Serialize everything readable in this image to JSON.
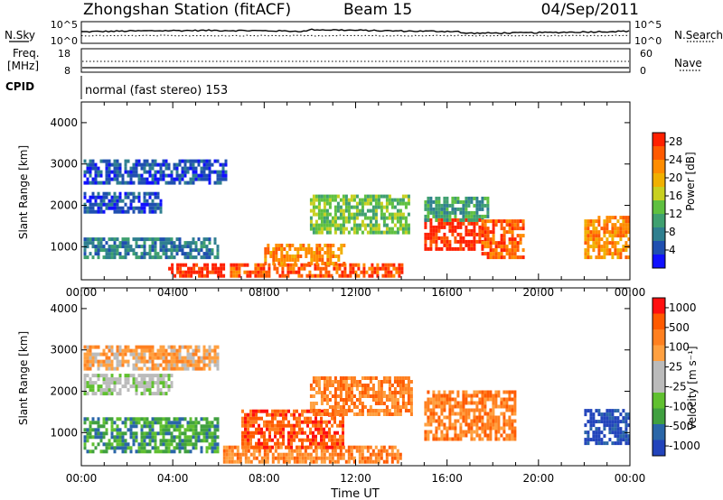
{
  "header": {
    "station": "Zhongshan Station (fitACF)",
    "beam": "Beam 15",
    "date": "04/Sep/2011"
  },
  "top_panels": {
    "nsky_label": "N.Sky",
    "nsearch_label": "N.Search",
    "noise_ticks": [
      "10^5",
      "10^0"
    ],
    "freq_label_1": "Freq.",
    "freq_label_2": "[MHz]",
    "freq_ticks": [
      "18",
      "8"
    ],
    "nave_label": "Nave",
    "nave_ticks": [
      "60",
      "0"
    ],
    "cpid_label": "CPID",
    "cpid_text": "normal (fast stereo) 153"
  },
  "colors": {
    "power": [
      "#1010ff",
      "#1f4fb0",
      "#2f7f8f",
      "#3fa070",
      "#5fc040",
      "#c8d020",
      "#f0b000",
      "#ff8c00",
      "#ff5a00",
      "#ff2000"
    ],
    "velocity": [
      "#2244bb",
      "#2a66a8",
      "#40a040",
      "#60c030",
      "#bbbbbb",
      "#bbbbbb",
      "#ffa040",
      "#ff8020",
      "#ff5a00",
      "#ff1010"
    ]
  },
  "chart_data": [
    {
      "type": "heatmap",
      "name": "power",
      "ylabel": "Slant Range [km]",
      "ylim": [
        200,
        4500
      ],
      "yticks": [
        "1000",
        "2000",
        "3000",
        "4000"
      ],
      "xticks": [
        "00:00",
        "04:00",
        "08:00",
        "12:00",
        "16:00",
        "20:00",
        "00:00"
      ],
      "colorbar_label": "Power [dB]",
      "colorbar_ticks": [
        "4",
        "8",
        "12",
        "16",
        "20",
        "24",
        "28"
      ],
      "regions": [
        {
          "t0": 0.1,
          "t1": 6.0,
          "r0": 700,
          "r1": 1200,
          "level": 2
        },
        {
          "t0": 0.1,
          "t1": 3.5,
          "r0": 1800,
          "r1": 2300,
          "level": 1
        },
        {
          "t0": 0.1,
          "t1": 6.3,
          "r0": 2500,
          "r1": 3100,
          "level": 1
        },
        {
          "t0": 3.8,
          "t1": 6.2,
          "r0": 250,
          "r1": 550,
          "level": 9
        },
        {
          "t0": 6.5,
          "t1": 14.0,
          "r0": 250,
          "r1": 550,
          "level": 8
        },
        {
          "t0": 8.0,
          "t1": 11.5,
          "r0": 550,
          "r1": 1000,
          "level": 7
        },
        {
          "t0": 10.0,
          "t1": 14.3,
          "r0": 1300,
          "r1": 2200,
          "level": 4
        },
        {
          "t0": 15.0,
          "t1": 17.6,
          "r0": 900,
          "r1": 1600,
          "level": 9
        },
        {
          "t0": 15.0,
          "t1": 17.8,
          "r0": 1600,
          "r1": 2200,
          "level": 3
        },
        {
          "t0": 17.5,
          "t1": 19.3,
          "r0": 700,
          "r1": 1600,
          "level": 8
        },
        {
          "t0": 22.0,
          "t1": 24.0,
          "r0": 700,
          "r1": 1700,
          "level": 7
        }
      ]
    },
    {
      "type": "heatmap",
      "name": "velocity",
      "ylabel": "Slant Range [km]",
      "ylim": [
        200,
        4500
      ],
      "yticks": [
        "1000",
        "2000",
        "3000",
        "4000"
      ],
      "xticks": [
        "00:00",
        "04:00",
        "08:00",
        "12:00",
        "16:00",
        "20:00",
        "00:00"
      ],
      "xlabel": "Time UT",
      "colorbar_label": "Velocity [m s⁻¹]",
      "colorbar_ticks": [
        "1000",
        "500",
        "100",
        "25",
        "-25",
        "-100",
        "-500",
        "-1000"
      ],
      "regions": [
        {
          "t0": 0.1,
          "t1": 4.0,
          "r0": 1900,
          "r1": 2400,
          "level": 4
        },
        {
          "t0": 0.1,
          "t1": 6.0,
          "r0": 2500,
          "r1": 3100,
          "level": 6
        },
        {
          "t0": 0.1,
          "t1": 6.0,
          "r0": 500,
          "r1": 1300,
          "level": 2
        },
        {
          "t0": 6.2,
          "t1": 14.0,
          "r0": 250,
          "r1": 600,
          "level": 7
        },
        {
          "t0": 7.0,
          "t1": 11.5,
          "r0": 600,
          "r1": 1500,
          "level": 8
        },
        {
          "t0": 10.0,
          "t1": 14.5,
          "r0": 1400,
          "r1": 2300,
          "level": 7
        },
        {
          "t0": 15.0,
          "t1": 19.0,
          "r0": 800,
          "r1": 2000,
          "level": 7
        },
        {
          "t0": 22.0,
          "t1": 24.0,
          "r0": 700,
          "r1": 1500,
          "level": 0
        }
      ]
    }
  ]
}
